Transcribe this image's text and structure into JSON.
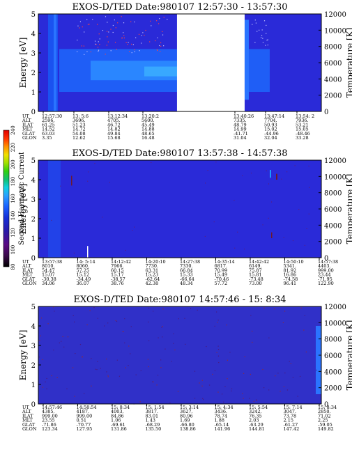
{
  "chart_data": [
    {
      "type": "heatmap",
      "title": "EXOS-D/TED  Date:980107  12:57:30 - 13:57:30",
      "ylabel": "Energy [eV]",
      "y2label": "Temperature [K]",
      "ylim": [
        0,
        5
      ],
      "y_ticks": [
        "0",
        "1",
        "2",
        "3",
        "4",
        "5"
      ],
      "y2lim": [
        0,
        12000
      ],
      "y2_ticks": [
        "0",
        "2000",
        "4000",
        "6000",
        "8000",
        "10000",
        "12000"
      ],
      "data_gap": [
        "13:20:22",
        "13:40:26"
      ],
      "bands": [
        {
          "y": [
            1.6,
            2.6
          ],
          "level": "high"
        },
        {
          "y": [
            1.0,
            3.2
          ],
          "level": "medium"
        }
      ],
      "orbit_table": {
        "labels": [
          "UT",
          "ALT",
          "ILAT",
          "MLT",
          "GLAT",
          "GLON"
        ],
        "columns": [
          {
            "UT": "12:57:30",
            "ALT": "2596.",
            "ILAT": "61.25",
            "MLT": "14.52",
            "GLAT": "63.03",
            "GLON": "3.35"
          },
          {
            "UT": "13: 5:6",
            "ALT": "3696.",
            "ILAT": "51.23",
            "MLT": "14.72",
            "GLAT": "54.08",
            "GLON": "12.62"
          },
          {
            "UT": "13:12:34",
            "ALT": "4705.",
            "ILAT": "46.72",
            "MLT": "14.82",
            "GLAT": "49.84",
            "GLON": "15.68"
          },
          {
            "UT": "13:20:2",
            "ALT": "5600.",
            "ILAT": "45.49",
            "MLT": "14.88",
            "GLAT": "48.65",
            "GLON": "16.48"
          },
          {
            "UT": "13:40:26",
            "ALT": "7335.",
            "ILAT": "48.79",
            "MLT": "14.99",
            "GLAT": "-41.71",
            "GLON": "31.04"
          },
          {
            "UT": "13:47:14",
            "ALT": "7704.",
            "ILAT": "50.93",
            "MLT": "15.02",
            "GLAT": "-44.96",
            "GLON": "32.04"
          },
          {
            "UT": "13:54: 2",
            "ALT": "7936.",
            "ILAT": "53.21",
            "MLT": "15.05",
            "GLAT": "-48.46",
            "GLON": "33.28"
          }
        ]
      }
    },
    {
      "type": "heatmap",
      "title": "EXOS-D/TED  Date:980107  13:57:38 - 14:57:38",
      "ylabel": "Energy [eV]",
      "y2label": "Temperature [K]",
      "ylim": [
        0,
        5
      ],
      "y_ticks": [
        "0",
        "1",
        "2",
        "3",
        "4",
        "5"
      ],
      "y2lim": [
        0,
        12000
      ],
      "y2_ticks": [
        "0",
        "2000",
        "4000",
        "6000",
        "8000",
        "10000",
        "12000"
      ],
      "orbit_table": {
        "labels": [
          "UT",
          "ALT",
          "ILAT",
          "MLT",
          "GLAT",
          "GLON"
        ],
        "columns": [
          {
            "UT": "13:57:38",
            "ALT": "8010.",
            "ILAT": "54.47",
            "MLT": "15.07",
            "GLAT": "-30.38",
            "GLON": "34.06"
          },
          {
            "UT": "14: 5:14",
            "ALT": "8060.",
            "ILAT": "57.25",
            "MLT": "15.12",
            "GLAT": "-34.49",
            "GLON": "36.07"
          },
          {
            "UT": "14:12:42",
            "ALT": "7966.",
            "ILAT": "60.15",
            "MLT": "15.17",
            "GLAT": "-38.57",
            "GLON": "38.76"
          },
          {
            "UT": "14:20:10",
            "ALT": "7730.",
            "ILAT": "63.31",
            "MLT": "15.23",
            "GLAT": "-62.64",
            "GLON": "42.38"
          },
          {
            "UT": "14:27:38",
            "ALT": "7330.",
            "ILAT": "66.84",
            "MLT": "15.33",
            "GLAT": "-66.64",
            "GLON": "48.34"
          },
          {
            "UT": "14:35:14",
            "ALT": "6817.",
            "ILAT": "70.99",
            "MLT": "15.49",
            "GLAT": "-70.46",
            "GLON": "57.72"
          },
          {
            "UT": "14:42:42",
            "ALT": "6149.",
            "ILAT": "75.87",
            "MLT": "15.81",
            "GLAT": "-73.48",
            "GLON": "73.00"
          },
          {
            "UT": "14:50:10",
            "ALT": "5341.",
            "ILAT": "81.92",
            "MLT": "16.86",
            "GLAT": "-74.58",
            "GLON": "96.41"
          },
          {
            "UT": "14:57:38",
            "ALT": "4403.",
            "ILAT": "999.00",
            "MLT": "23.44",
            "GLAT": "-71.95",
            "GLON": "122.90"
          }
        ]
      }
    },
    {
      "type": "heatmap",
      "title": "EXOS-D/TED  Date:980107  14:57:46 - 15: 8:34",
      "ylabel": "Energy [eV]",
      "y2label": "Temperature [K]",
      "ylim": [
        0,
        5
      ],
      "y_ticks": [
        "0",
        "1",
        "2",
        "3",
        "4",
        "5"
      ],
      "y2lim": [
        0,
        12000
      ],
      "y2_ticks": [
        "0",
        "2000",
        "4000",
        "6000",
        "8000",
        "10000",
        "12000"
      ],
      "orbit_table": {
        "labels": [
          "UT",
          "ALT",
          "ILAT",
          "MLT",
          "GLAT",
          "GLON"
        ],
        "columns": [
          {
            "UT": "14:57:46",
            "ALT": "4385.",
            "ILAT": "999.00",
            "MLT": "23.55",
            "GLAT": "-71.86",
            "GLON": "123.34"
          },
          {
            "UT": "14:58:54",
            "ALT": "4187.",
            "ILAT": "999.00",
            "MLT": "0.51",
            "GLAT": "-70.77",
            "GLON": "127.95"
          },
          {
            "UT": "15: 0:34",
            "ALT": "4003.",
            "ILAT": "84.86",
            "MLT": "1.06",
            "GLAT": "-69.61",
            "GLON": "131.86"
          },
          {
            "UT": "15: 1:54",
            "ALT": "3817.",
            "ILAT": "83.01",
            "MLT": "1.43",
            "GLAT": "-68.29",
            "GLON": "135.50"
          },
          {
            "UT": "15: 3:14",
            "ALT": "3627.",
            "ILAT": "80.96",
            "MLT": "1.69",
            "GLAT": "-66.80",
            "GLON": "138.86"
          },
          {
            "UT": "15: 4:34",
            "ALT": "3436.",
            "ILAT": "78.74",
            "MLT": "1.88",
            "GLAT": "-65.14",
            "GLON": "141.96"
          },
          {
            "UT": "15: 5:54",
            "ALT": "3242.",
            "ILAT": "76.35",
            "MLT": "2.03",
            "GLAT": "-63.29",
            "GLON": "144.81"
          },
          {
            "UT": "15: 7:14",
            "ALT": "3047.",
            "ILAT": "73.78",
            "MLT": "2.15",
            "GLAT": "-61.27",
            "GLON": "147.42"
          },
          {
            "UT": "15: 8:34",
            "ALT": "2850.",
            "ILAT": "71.02",
            "MLT": "2.25",
            "GLAT": "-59.05",
            "GLON": "149.82"
          }
        ]
      }
    }
  ],
  "colorbar": {
    "label": "Second Harmonic Current",
    "ticks": [
      "80",
      "100",
      "120",
      "140",
      "160",
      "180",
      "200",
      "220",
      "240"
    ],
    "colors": [
      "#000000",
      "#3a0a4a",
      "#5a0a82",
      "#2a1aa8",
      "#1530d8",
      "#1a60ff",
      "#2aa0ff",
      "#10d0e0",
      "#10c070",
      "#30d010",
      "#a0e000",
      "#f0e000",
      "#ff9000",
      "#ff3000",
      "#e00000"
    ]
  }
}
